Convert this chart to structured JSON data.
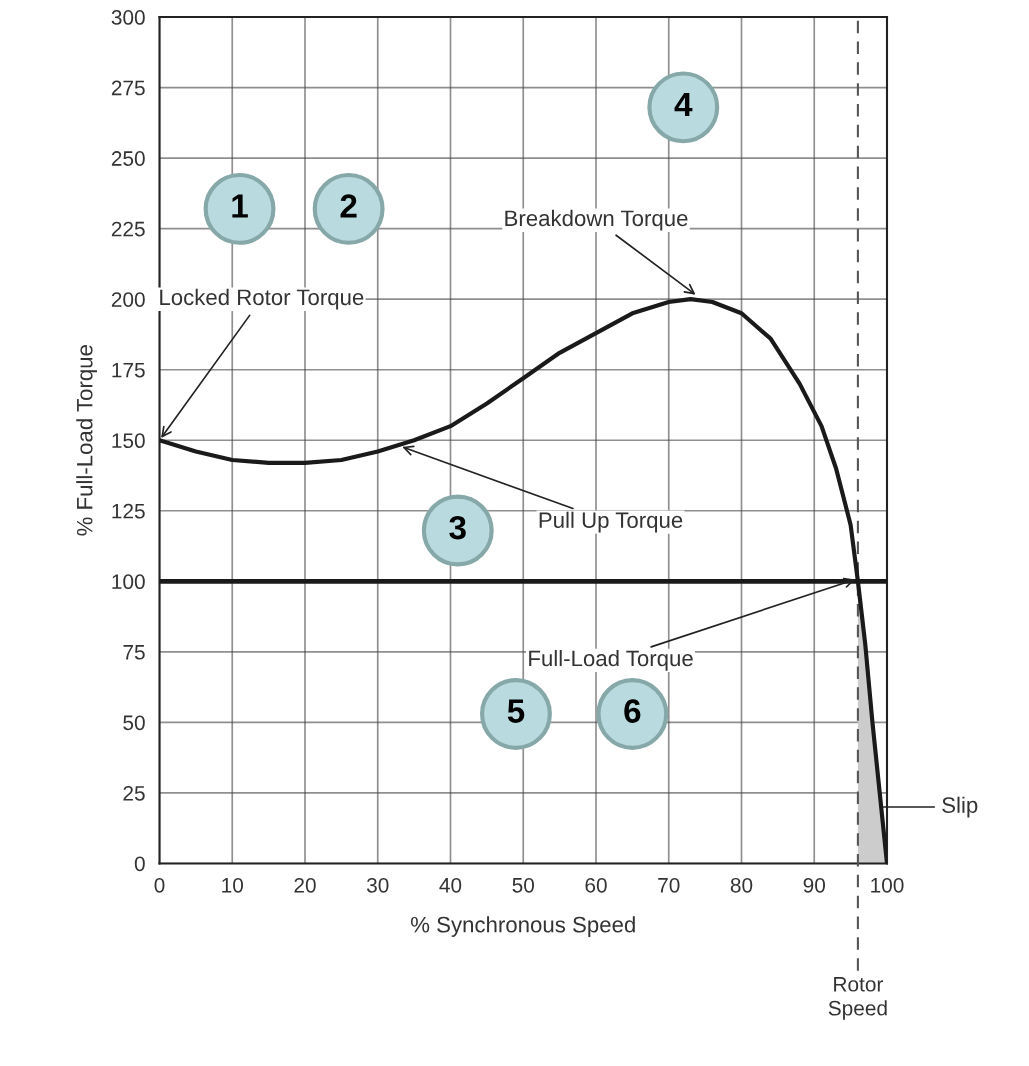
{
  "chart_data": {
    "type": "line",
    "xlabel": "% Synchronous Speed",
    "ylabel": "% Full-Load Torque",
    "x": [
      0,
      5,
      10,
      15,
      20,
      25,
      30,
      35,
      40,
      45,
      50,
      55,
      60,
      65,
      70,
      73,
      76,
      80,
      84,
      88,
      91,
      93,
      95,
      96,
      97,
      98,
      99,
      100
    ],
    "series": [
      {
        "color": "#1a1a1a",
        "values": [
          150,
          146,
          143,
          142,
          142,
          143,
          146,
          150,
          155,
          163,
          172,
          181,
          188,
          195,
          199,
          200,
          199,
          195,
          186,
          170,
          155,
          140,
          120,
          100,
          78,
          50,
          25,
          0
        ]
      },
      {
        "type": "area",
        "color": "#cccccc",
        "x": [
          96,
          97,
          98,
          99,
          100
        ],
        "values": [
          100,
          78,
          50,
          25,
          0
        ]
      }
    ],
    "xlim": [
      0,
      100
    ],
    "xticks": [
      0,
      10,
      20,
      30,
      40,
      50,
      60,
      70,
      80,
      90,
      100
    ],
    "ylim": [
      0,
      300
    ],
    "yticks": [
      0,
      25,
      50,
      75,
      100,
      125,
      150,
      175,
      200,
      225,
      250,
      275,
      300
    ],
    "grid": true,
    "marker": "none",
    "line_style": "solid",
    "ref_lines": [
      {
        "axis": "y",
        "value": 100,
        "color": "#1a1a1a",
        "line_style": "solid"
      },
      {
        "axis": "x",
        "value": 96,
        "label": "Rotor\nSpeed",
        "color": "#555555",
        "line_style": "dashed"
      }
    ],
    "annotations": [
      {
        "text": "Locked Rotor Torque",
        "x": 0,
        "y": 150
      },
      {
        "text": "Breakdown Torque",
        "x": 74,
        "y": 201
      },
      {
        "text": "Pull Up Torque",
        "x": 33,
        "y": 148
      },
      {
        "text": "Full-Load Torque",
        "x": 96,
        "y": 101
      },
      {
        "text": "Slip",
        "x": 99,
        "y": 20
      },
      "1",
      "2",
      "3",
      "4",
      "5",
      "6"
    ]
  }
}
